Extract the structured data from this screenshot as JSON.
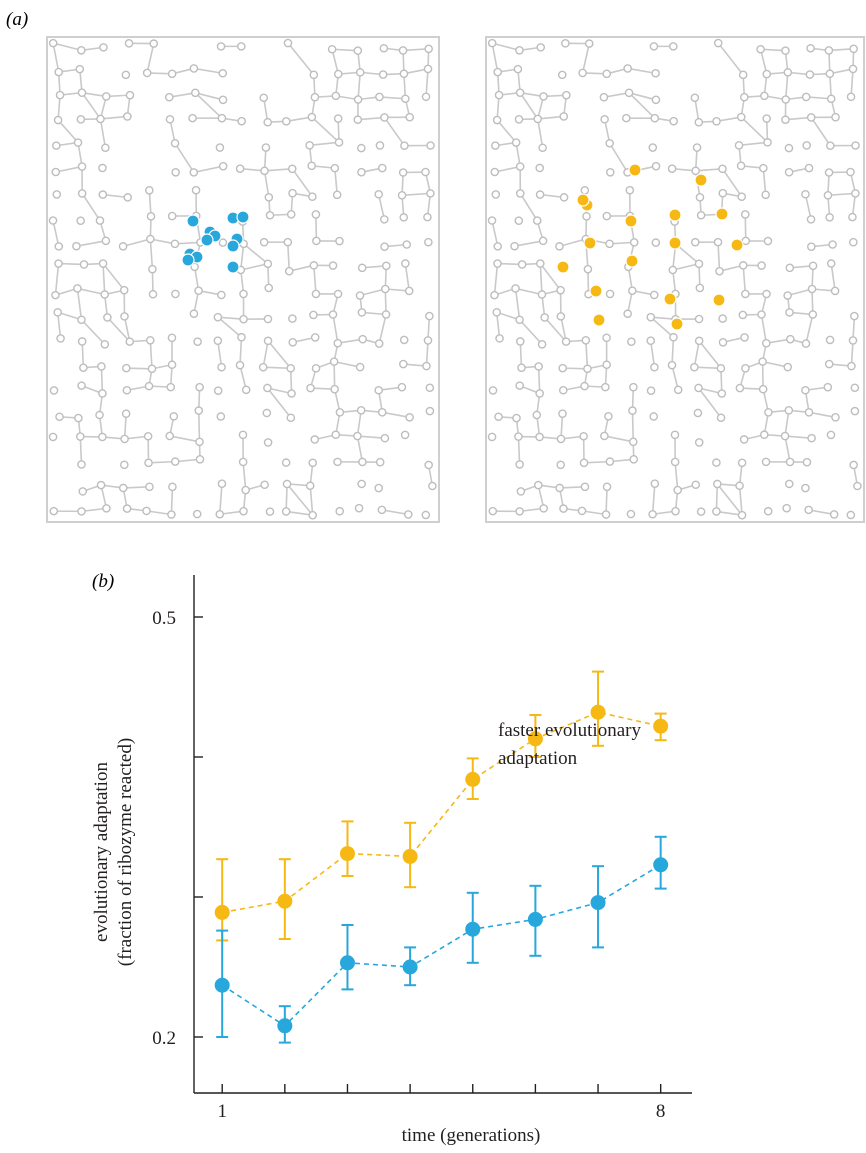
{
  "figure": {
    "panel_a_label": "(a)",
    "panel_b_label": "(b)"
  },
  "network_panels": [
    {
      "name": "clustered",
      "marker_color": "#27a7dc",
      "highlighted_nodes": 12
    },
    {
      "name": "dispersed",
      "marker_color": "#f6b813",
      "highlighted_nodes": 17
    }
  ],
  "chart_data": {
    "type": "line",
    "xlabel": "time (generations)",
    "ylabel_line1": "evolutionary adaptation",
    "ylabel_line2": "(fraction of ribozyme reacted)",
    "x": [
      1,
      2,
      3,
      4,
      5,
      6,
      7,
      8
    ],
    "x_tick_labels": [
      "1",
      "",
      "",
      "",
      "",
      "",
      "",
      "8"
    ],
    "xlim": [
      0.55,
      8.5
    ],
    "ylim": [
      0.16,
      0.53
    ],
    "y_ticks": [
      0.2,
      0.3,
      0.4,
      0.5
    ],
    "y_tick_labels": [
      "0.2",
      "",
      "",
      "0.5"
    ],
    "series": [
      {
        "color": "#f6b813",
        "values": [
          0.289,
          0.297,
          0.331,
          0.329,
          0.384,
          0.413,
          0.432,
          0.422
        ],
        "err_low": [
          0.269,
          0.27,
          0.315,
          0.307,
          0.37,
          0.4,
          0.408,
          0.412
        ],
        "err_high": [
          0.327,
          0.327,
          0.354,
          0.353,
          0.399,
          0.43,
          0.461,
          0.431
        ]
      },
      {
        "color": "#27a7dc",
        "values": [
          0.237,
          0.208,
          0.253,
          0.25,
          0.277,
          0.284,
          0.296,
          0.323
        ],
        "err_low": [
          0.2,
          0.196,
          0.234,
          0.237,
          0.253,
          0.258,
          0.264,
          0.306
        ],
        "err_high": [
          0.276,
          0.222,
          0.28,
          0.264,
          0.303,
          0.308,
          0.322,
          0.343
        ]
      }
    ],
    "annotation_line1": "faster evolutionary",
    "annotation_line2": "adaptation",
    "line_style": "dashed",
    "grid": false,
    "legend": "none"
  }
}
